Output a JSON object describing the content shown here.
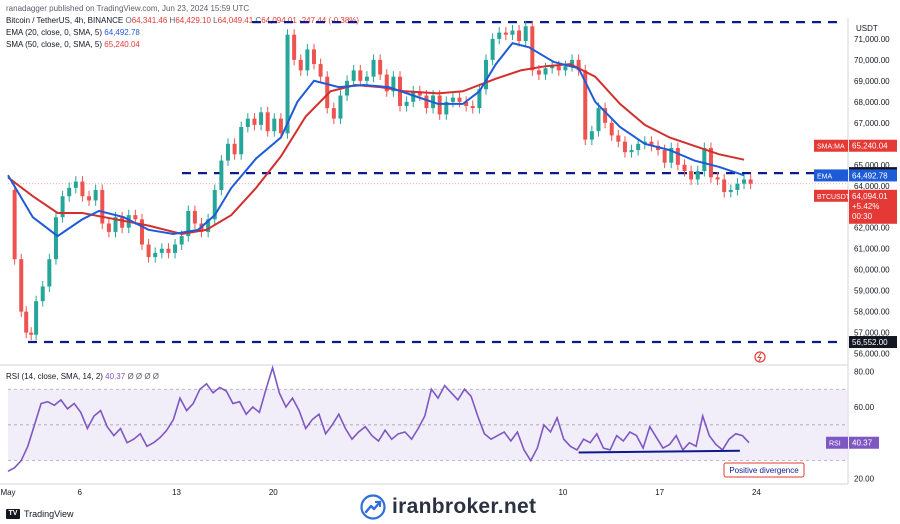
{
  "header": {
    "publisher": "ranadagger published on TradingView.com, Jun 23, 2024 15:59 UTC",
    "symbol": "Bitcoin / TetherUS, 4h, BINANCE",
    "ohlc": {
      "o_label": "O",
      "o": "64,341.46",
      "h_label": "H",
      "h": "64,429.10",
      "l_label": "L",
      "l": "64,049.41",
      "c_label": "C",
      "c": "64,094.01",
      "change": "-247.44 (-0.38%)"
    },
    "ema_label": "EMA (20, close, 0, SMA, 5)",
    "ema_value": "64,492.78",
    "sma_label": "SMA (50, close, 0, SMA, 5)",
    "sma_value": "65,240.04",
    "rsi_label": "RSI (14, close, SMA, 14, 2)",
    "rsi_value": "40.37",
    "rsi_extra": "Ø Ø Ø Ø"
  },
  "currency": "USDT",
  "footer": {
    "tv_text": "TradingView",
    "brand": "iranbroker.net"
  },
  "chart_data": {
    "type": "candlestick",
    "price_axis": {
      "ticks": [
        56000,
        57000,
        58000,
        59000,
        60000,
        61000,
        62000,
        63000,
        64000,
        65000,
        66000,
        67000,
        68000,
        69000,
        70000,
        71000
      ],
      "tick_labels": [
        "56,000.00",
        "57,000.00",
        "58,000.00",
        "59,000.00",
        "60,000.00",
        "61,000.00",
        "62,000.00",
        "63,000.00",
        "64,000.00",
        "65,000.00",
        "66,000.00",
        "67,000.00",
        "68,000.00",
        "69,000.00",
        "70,000.00",
        "71,000.00"
      ],
      "range": [
        55600,
        71900
      ]
    },
    "x_axis": {
      "ticks": [
        {
          "label": "May",
          "t": 0
        },
        {
          "label": "6",
          "t": 0.0868
        },
        {
          "label": "13",
          "t": 0.2038
        },
        {
          "label": "20",
          "t": 0.3208
        },
        {
          "label": "10",
          "t": 0.671
        },
        {
          "label": "17",
          "t": 0.788
        },
        {
          "label": "24",
          "t": 0.905
        }
      ]
    },
    "levels": [
      {
        "price": 71800,
        "label": ""
      },
      {
        "price": 64602,
        "label": "64,602.00"
      },
      {
        "price": 56552,
        "label": "56,552.00"
      }
    ],
    "price_tags": [
      {
        "name": "SMA:MA",
        "value": "65,240.04",
        "price": 65240,
        "color": "#e53935"
      },
      {
        "name": "EMA",
        "value": "64,492.78",
        "price": 64492.78,
        "color": "#1e5bd7"
      },
      {
        "name": "BTCUSDT",
        "value": "64,094.01",
        "price": 64094.01,
        "color": "#e53935",
        "extra": [
          "+5.42%",
          "00:30"
        ]
      }
    ],
    "price_path": [
      [
        0.0,
        63800
      ],
      [
        0.008,
        60500
      ],
      [
        0.016,
        58000
      ],
      [
        0.022,
        57000
      ],
      [
        0.028,
        56900
      ],
      [
        0.034,
        58500
      ],
      [
        0.042,
        59200
      ],
      [
        0.05,
        60500
      ],
      [
        0.058,
        62500
      ],
      [
        0.066,
        63500
      ],
      [
        0.074,
        63900
      ],
      [
        0.082,
        64200
      ],
      [
        0.09,
        63500
      ],
      [
        0.098,
        63300
      ],
      [
        0.106,
        63800
      ],
      [
        0.114,
        62200
      ],
      [
        0.122,
        61800
      ],
      [
        0.13,
        62500
      ],
      [
        0.138,
        62000
      ],
      [
        0.146,
        62600
      ],
      [
        0.154,
        62400
      ],
      [
        0.162,
        61200
      ],
      [
        0.17,
        60600
      ],
      [
        0.178,
        60800
      ],
      [
        0.186,
        61000
      ],
      [
        0.194,
        60800
      ],
      [
        0.202,
        61200
      ],
      [
        0.21,
        61600
      ],
      [
        0.218,
        62800
      ],
      [
        0.226,
        62200
      ],
      [
        0.234,
        61800
      ],
      [
        0.242,
        62400
      ],
      [
        0.25,
        63800
      ],
      [
        0.258,
        65200
      ],
      [
        0.266,
        66000
      ],
      [
        0.274,
        65500
      ],
      [
        0.282,
        66800
      ],
      [
        0.29,
        67200
      ],
      [
        0.298,
        66900
      ],
      [
        0.306,
        67500
      ],
      [
        0.314,
        66600
      ],
      [
        0.322,
        67200
      ],
      [
        0.33,
        66500
      ],
      [
        0.338,
        71200
      ],
      [
        0.346,
        70000
      ],
      [
        0.354,
        69500
      ],
      [
        0.362,
        70500
      ],
      [
        0.37,
        69800
      ],
      [
        0.378,
        69200
      ],
      [
        0.386,
        67700
      ],
      [
        0.394,
        67200
      ],
      [
        0.402,
        68300
      ],
      [
        0.41,
        69000
      ],
      [
        0.418,
        69500
      ],
      [
        0.426,
        69000
      ],
      [
        0.434,
        69200
      ],
      [
        0.442,
        70000
      ],
      [
        0.45,
        69300
      ],
      [
        0.458,
        68500
      ],
      [
        0.466,
        69200
      ],
      [
        0.474,
        67800
      ],
      [
        0.482,
        68000
      ],
      [
        0.49,
        68500
      ],
      [
        0.498,
        68300
      ],
      [
        0.506,
        67700
      ],
      [
        0.514,
        68300
      ],
      [
        0.522,
        67400
      ],
      [
        0.53,
        68000
      ],
      [
        0.538,
        68200
      ],
      [
        0.546,
        68000
      ],
      [
        0.554,
        67800
      ],
      [
        0.562,
        67700
      ],
      [
        0.57,
        68600
      ],
      [
        0.578,
        70000
      ],
      [
        0.586,
        71000
      ],
      [
        0.594,
        71300
      ],
      [
        0.602,
        71200
      ],
      [
        0.61,
        71400
      ],
      [
        0.618,
        70900
      ],
      [
        0.626,
        71600
      ],
      [
        0.634,
        69500
      ],
      [
        0.642,
        69300
      ],
      [
        0.65,
        69600
      ],
      [
        0.658,
        69700
      ],
      [
        0.666,
        69500
      ],
      [
        0.674,
        69700
      ],
      [
        0.682,
        70000
      ],
      [
        0.69,
        69500
      ],
      [
        0.698,
        66200
      ],
      [
        0.706,
        66600
      ],
      [
        0.714,
        67700
      ],
      [
        0.722,
        67000
      ],
      [
        0.73,
        66400
      ],
      [
        0.738,
        66100
      ],
      [
        0.746,
        65600
      ],
      [
        0.754,
        65700
      ],
      [
        0.762,
        66000
      ],
      [
        0.77,
        66100
      ],
      [
        0.778,
        65900
      ],
      [
        0.786,
        65700
      ],
      [
        0.794,
        65100
      ],
      [
        0.802,
        65800
      ],
      [
        0.81,
        65000
      ],
      [
        0.818,
        64700
      ],
      [
        0.826,
        64300
      ],
      [
        0.834,
        64700
      ],
      [
        0.842,
        65800
      ],
      [
        0.85,
        64400
      ],
      [
        0.858,
        64300
      ],
      [
        0.866,
        63700
      ],
      [
        0.874,
        63800
      ],
      [
        0.882,
        64100
      ],
      [
        0.89,
        64300
      ],
      [
        0.898,
        64100
      ]
    ],
    "ema_path": [
      [
        0.0,
        64500
      ],
      [
        0.03,
        62500
      ],
      [
        0.06,
        61600
      ],
      [
        0.09,
        62400
      ],
      [
        0.11,
        62800
      ],
      [
        0.14,
        62500
      ],
      [
        0.17,
        61900
      ],
      [
        0.2,
        61700
      ],
      [
        0.23,
        61900
      ],
      [
        0.25,
        62600
      ],
      [
        0.27,
        63900
      ],
      [
        0.3,
        65300
      ],
      [
        0.33,
        66300
      ],
      [
        0.35,
        68000
      ],
      [
        0.37,
        69000
      ],
      [
        0.4,
        68700
      ],
      [
        0.43,
        68800
      ],
      [
        0.46,
        68700
      ],
      [
        0.49,
        68300
      ],
      [
        0.52,
        67900
      ],
      [
        0.55,
        67900
      ],
      [
        0.57,
        68500
      ],
      [
        0.59,
        69800
      ],
      [
        0.61,
        70800
      ],
      [
        0.63,
        70600
      ],
      [
        0.66,
        69900
      ],
      [
        0.69,
        69600
      ],
      [
        0.71,
        68000
      ],
      [
        0.74,
        66800
      ],
      [
        0.77,
        66000
      ],
      [
        0.8,
        65700
      ],
      [
        0.83,
        65200
      ],
      [
        0.86,
        64900
      ],
      [
        0.89,
        64500
      ]
    ],
    "sma_path": [
      [
        0.0,
        64400
      ],
      [
        0.03,
        63500
      ],
      [
        0.06,
        62700
      ],
      [
        0.09,
        62700
      ],
      [
        0.13,
        62400
      ],
      [
        0.17,
        62100
      ],
      [
        0.21,
        61700
      ],
      [
        0.24,
        61900
      ],
      [
        0.27,
        62600
      ],
      [
        0.3,
        63900
      ],
      [
        0.33,
        65400
      ],
      [
        0.36,
        67300
      ],
      [
        0.39,
        68500
      ],
      [
        0.42,
        68800
      ],
      [
        0.45,
        68700
      ],
      [
        0.48,
        68500
      ],
      [
        0.52,
        68400
      ],
      [
        0.55,
        68500
      ],
      [
        0.59,
        69100
      ],
      [
        0.62,
        69500
      ],
      [
        0.65,
        69700
      ],
      [
        0.68,
        69800
      ],
      [
        0.71,
        69200
      ],
      [
        0.74,
        67900
      ],
      [
        0.77,
        66900
      ],
      [
        0.8,
        66300
      ],
      [
        0.83,
        65900
      ],
      [
        0.86,
        65500
      ],
      [
        0.89,
        65240
      ]
    ],
    "rsi": {
      "ticks": [
        20,
        40,
        60,
        80
      ],
      "tick_labels": [
        "20.00",
        "40.00",
        "60.00",
        "80.00"
      ],
      "range": [
        18,
        83
      ],
      "band": [
        30,
        70
      ],
      "path": [
        [
          0.0,
          24
        ],
        [
          0.008,
          26
        ],
        [
          0.016,
          30
        ],
        [
          0.024,
          38
        ],
        [
          0.032,
          50
        ],
        [
          0.04,
          62
        ],
        [
          0.048,
          63
        ],
        [
          0.056,
          61
        ],
        [
          0.064,
          64
        ],
        [
          0.072,
          59
        ],
        [
          0.08,
          62
        ],
        [
          0.088,
          57
        ],
        [
          0.096,
          48
        ],
        [
          0.104,
          55
        ],
        [
          0.112,
          58
        ],
        [
          0.12,
          49
        ],
        [
          0.128,
          44
        ],
        [
          0.136,
          48
        ],
        [
          0.144,
          40
        ],
        [
          0.152,
          42
        ],
        [
          0.16,
          45
        ],
        [
          0.168,
          38
        ],
        [
          0.176,
          40
        ],
        [
          0.184,
          43
        ],
        [
          0.192,
          47
        ],
        [
          0.2,
          53
        ],
        [
          0.208,
          65
        ],
        [
          0.216,
          58
        ],
        [
          0.224,
          62
        ],
        [
          0.232,
          70
        ],
        [
          0.24,
          73
        ],
        [
          0.248,
          68
        ],
        [
          0.256,
          71
        ],
        [
          0.264,
          69
        ],
        [
          0.272,
          62
        ],
        [
          0.28,
          63
        ],
        [
          0.288,
          56
        ],
        [
          0.296,
          60
        ],
        [
          0.304,
          57
        ],
        [
          0.312,
          70
        ],
        [
          0.32,
          82
        ],
        [
          0.328,
          68
        ],
        [
          0.336,
          60
        ],
        [
          0.344,
          65
        ],
        [
          0.352,
          58
        ],
        [
          0.36,
          48
        ],
        [
          0.368,
          53
        ],
        [
          0.376,
          56
        ],
        [
          0.384,
          45
        ],
        [
          0.392,
          50
        ],
        [
          0.4,
          56
        ],
        [
          0.408,
          48
        ],
        [
          0.416,
          42
        ],
        [
          0.424,
          46
        ],
        [
          0.432,
          49
        ],
        [
          0.44,
          44
        ],
        [
          0.448,
          41
        ],
        [
          0.456,
          47
        ],
        [
          0.464,
          42
        ],
        [
          0.472,
          45
        ],
        [
          0.48,
          46
        ],
        [
          0.488,
          42
        ],
        [
          0.496,
          48
        ],
        [
          0.504,
          55
        ],
        [
          0.512,
          70
        ],
        [
          0.52,
          65
        ],
        [
          0.528,
          72
        ],
        [
          0.536,
          68
        ],
        [
          0.544,
          64
        ],
        [
          0.552,
          70
        ],
        [
          0.56,
          66
        ],
        [
          0.568,
          55
        ],
        [
          0.576,
          45
        ],
        [
          0.584,
          42
        ],
        [
          0.592,
          44
        ],
        [
          0.6,
          46
        ],
        [
          0.608,
          41
        ],
        [
          0.616,
          46
        ],
        [
          0.624,
          36
        ],
        [
          0.632,
          30
        ],
        [
          0.64,
          37
        ],
        [
          0.648,
          50
        ],
        [
          0.656,
          46
        ],
        [
          0.664,
          54
        ],
        [
          0.672,
          42
        ],
        [
          0.68,
          38
        ],
        [
          0.688,
          36
        ],
        [
          0.696,
          42
        ],
        [
          0.704,
          40
        ],
        [
          0.712,
          45
        ],
        [
          0.72,
          37
        ],
        [
          0.728,
          36
        ],
        [
          0.736,
          44
        ],
        [
          0.744,
          41
        ],
        [
          0.752,
          46
        ],
        [
          0.76,
          44
        ],
        [
          0.768,
          37
        ],
        [
          0.776,
          49
        ],
        [
          0.784,
          43
        ],
        [
          0.792,
          37
        ],
        [
          0.8,
          39
        ],
        [
          0.808,
          44
        ],
        [
          0.816,
          36
        ],
        [
          0.824,
          40
        ],
        [
          0.832,
          38
        ],
        [
          0.84,
          55
        ],
        [
          0.848,
          44
        ],
        [
          0.856,
          39
        ],
        [
          0.864,
          36
        ],
        [
          0.872,
          42
        ],
        [
          0.88,
          45
        ],
        [
          0.888,
          44
        ],
        [
          0.896,
          40
        ]
      ],
      "divergence_line": [
        [
          0.69,
          34.5
        ],
        [
          0.885,
          35.5
        ]
      ],
      "annotation": "Positive divergence"
    }
  }
}
